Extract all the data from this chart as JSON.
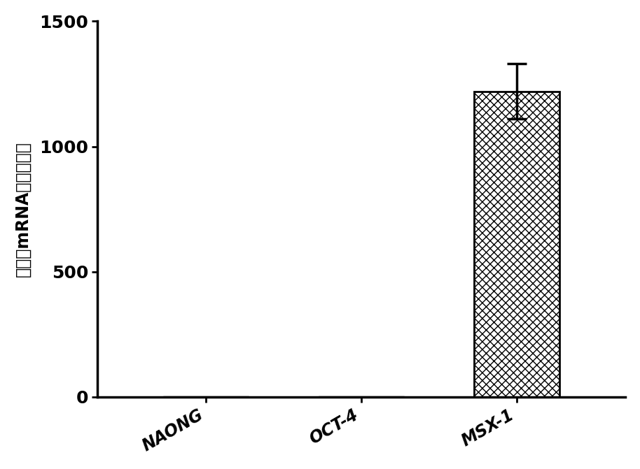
{
  "categories": [
    "NAONG",
    "OCT-4",
    "MSX-1"
  ],
  "values": [
    3,
    3,
    1220
  ],
  "errors_upper": [
    0,
    0,
    110
  ],
  "ylim": [
    0,
    1500
  ],
  "yticks": [
    0,
    500,
    1000,
    1500
  ],
  "ylabel": "各基因mRNA相对表达量",
  "bar_fill_color": "#ffffff",
  "bar_edge_color": "#000000",
  "hatch_main": "xxx",
  "background_color": "#ffffff",
  "bar_width": 0.55,
  "ylabel_fontsize": 17,
  "tick_fontsize": 18,
  "xlabel_fontsize": 17,
  "spine_linewidth": 2.5,
  "small_bar_values": [
    3,
    3
  ],
  "small_bar_color": "#333333"
}
